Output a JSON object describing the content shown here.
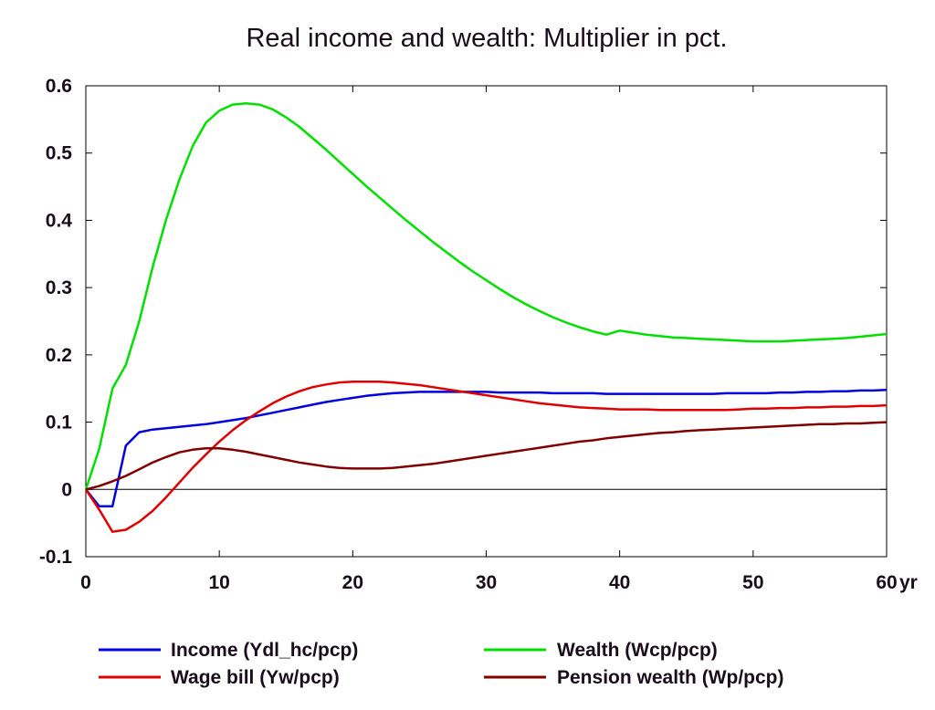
{
  "chart_data": {
    "type": "line",
    "title": "Real income and wealth: Multiplier in pct.",
    "xlabel": "",
    "ylabel": "",
    "x_unit_label": "yr",
    "xlim": [
      0,
      60
    ],
    "ylim": [
      -0.1,
      0.6
    ],
    "x_ticks": [
      0,
      10,
      20,
      30,
      40,
      50,
      60
    ],
    "x_tick_labels": [
      "0",
      "10",
      "20",
      "30",
      "40",
      "50",
      "60"
    ],
    "y_ticks": [
      -0.1,
      0,
      0.1,
      0.2,
      0.3,
      0.4,
      0.5,
      0.6
    ],
    "y_tick_labels": [
      "-0.1",
      "0",
      "0.1",
      "0.2",
      "0.3",
      "0.4",
      "0.5",
      "0.6"
    ],
    "grid": false,
    "zero_line": true,
    "legend_position": "bottom",
    "x": [
      0,
      1,
      2,
      3,
      4,
      5,
      6,
      7,
      8,
      9,
      10,
      11,
      12,
      13,
      14,
      15,
      16,
      17,
      18,
      19,
      20,
      21,
      22,
      23,
      24,
      25,
      26,
      27,
      28,
      29,
      30,
      31,
      32,
      33,
      34,
      35,
      36,
      37,
      38,
      39,
      40,
      41,
      42,
      43,
      44,
      45,
      46,
      47,
      48,
      49,
      50,
      51,
      52,
      53,
      54,
      55,
      56,
      57,
      58,
      59,
      60
    ],
    "series": [
      {
        "name": "Income (Ydl_hc/pcp)",
        "color": "#0000e0",
        "values": [
          0,
          -0.025,
          -0.025,
          0.065,
          0.085,
          0.089,
          0.091,
          0.093,
          0.095,
          0.097,
          0.1,
          0.103,
          0.106,
          0.11,
          0.114,
          0.118,
          0.122,
          0.126,
          0.13,
          0.133,
          0.136,
          0.139,
          0.141,
          0.143,
          0.144,
          0.145,
          0.145,
          0.145,
          0.145,
          0.145,
          0.145,
          0.144,
          0.144,
          0.144,
          0.144,
          0.143,
          0.143,
          0.143,
          0.143,
          0.142,
          0.142,
          0.142,
          0.142,
          0.142,
          0.142,
          0.142,
          0.142,
          0.142,
          0.143,
          0.143,
          0.143,
          0.143,
          0.144,
          0.144,
          0.145,
          0.145,
          0.146,
          0.146,
          0.147,
          0.147,
          0.148
        ]
      },
      {
        "name": "Wealth (Wcp/pcp)",
        "color": "#00e000",
        "values": [
          0,
          0.06,
          0.15,
          0.185,
          0.25,
          0.33,
          0.4,
          0.46,
          0.51,
          0.545,
          0.563,
          0.572,
          0.574,
          0.572,
          0.565,
          0.553,
          0.539,
          0.522,
          0.505,
          0.487,
          0.469,
          0.451,
          0.434,
          0.417,
          0.4,
          0.384,
          0.368,
          0.353,
          0.338,
          0.324,
          0.311,
          0.298,
          0.286,
          0.275,
          0.265,
          0.256,
          0.248,
          0.241,
          0.235,
          0.23,
          0.236,
          0.233,
          0.23,
          0.228,
          0.226,
          0.225,
          0.224,
          0.223,
          0.222,
          0.221,
          0.22,
          0.22,
          0.22,
          0.221,
          0.222,
          0.223,
          0.224,
          0.225,
          0.227,
          0.229,
          0.231
        ]
      },
      {
        "name": "Wage bill (Yw/pcp)",
        "color": "#e00000",
        "values": [
          0,
          -0.03,
          -0.063,
          -0.06,
          -0.048,
          -0.032,
          -0.012,
          0.01,
          0.032,
          0.052,
          0.071,
          0.088,
          0.103,
          0.116,
          0.128,
          0.138,
          0.146,
          0.152,
          0.156,
          0.159,
          0.16,
          0.16,
          0.16,
          0.159,
          0.157,
          0.155,
          0.152,
          0.149,
          0.146,
          0.143,
          0.14,
          0.137,
          0.134,
          0.131,
          0.128,
          0.126,
          0.124,
          0.122,
          0.121,
          0.12,
          0.119,
          0.119,
          0.119,
          0.118,
          0.118,
          0.118,
          0.118,
          0.118,
          0.118,
          0.119,
          0.12,
          0.12,
          0.121,
          0.121,
          0.122,
          0.122,
          0.123,
          0.123,
          0.124,
          0.124,
          0.125
        ]
      },
      {
        "name": "Pension wealth (Wp/pcp)",
        "color": "#800000",
        "values": [
          0,
          0.005,
          0.012,
          0.02,
          0.03,
          0.04,
          0.048,
          0.055,
          0.059,
          0.061,
          0.061,
          0.059,
          0.056,
          0.052,
          0.048,
          0.044,
          0.04,
          0.037,
          0.034,
          0.032,
          0.031,
          0.031,
          0.031,
          0.032,
          0.034,
          0.036,
          0.038,
          0.041,
          0.044,
          0.047,
          0.05,
          0.053,
          0.056,
          0.059,
          0.062,
          0.065,
          0.068,
          0.071,
          0.073,
          0.076,
          0.078,
          0.08,
          0.082,
          0.084,
          0.085,
          0.087,
          0.088,
          0.089,
          0.09,
          0.091,
          0.092,
          0.093,
          0.094,
          0.095,
          0.096,
          0.097,
          0.097,
          0.098,
          0.098,
          0.099,
          0.1
        ]
      }
    ]
  }
}
